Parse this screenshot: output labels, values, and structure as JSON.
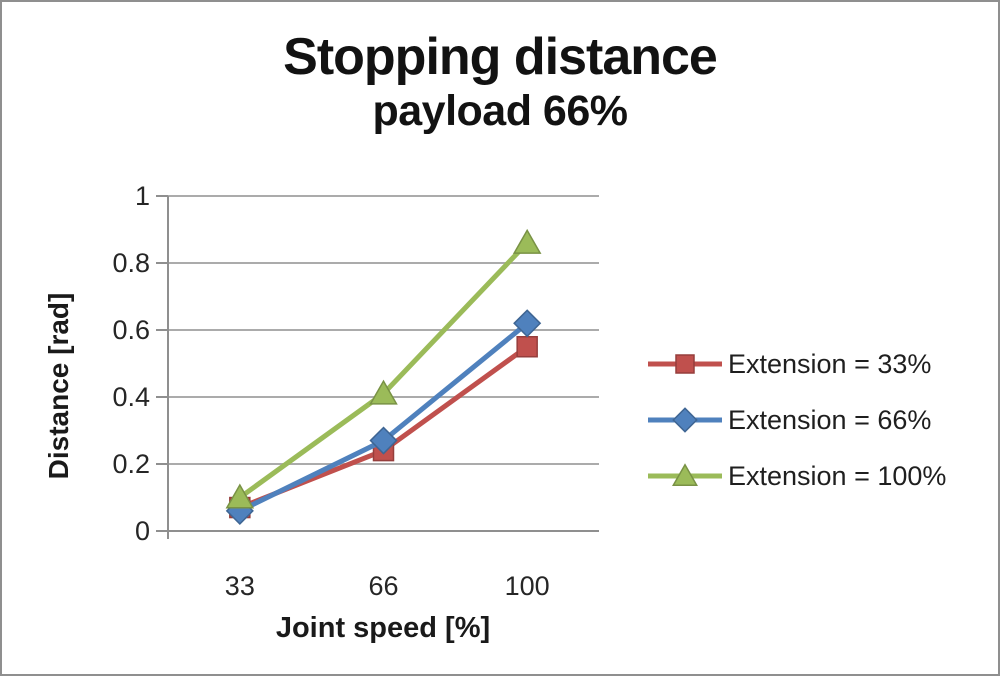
{
  "window": {
    "background": "#ffffff",
    "border_color": "#8f8f8f"
  },
  "chart_data": {
    "type": "line",
    "title": "Stopping distance",
    "subtitle": "payload 66%",
    "xlabel": "Joint speed [%]",
    "ylabel": "Distance [rad]",
    "categories": [
      "33",
      "66",
      "100"
    ],
    "y_ticks": [
      "0",
      "0.2",
      "0.4",
      "0.6",
      "0.8",
      "1"
    ],
    "ylim": [
      0,
      1
    ],
    "grid": "horizontal",
    "legend_position": "right",
    "series": [
      {
        "name": "Extension = 33%",
        "marker": "square",
        "color": "#C0504D",
        "values": [
          0.07,
          0.24,
          0.55
        ]
      },
      {
        "name": "Extension = 66%",
        "marker": "diamond",
        "color": "#4F81BD",
        "values": [
          0.06,
          0.27,
          0.62
        ]
      },
      {
        "name": "Extension = 100%",
        "marker": "triangle",
        "color": "#9BBB59",
        "values": [
          0.1,
          0.41,
          0.86
        ]
      }
    ],
    "gridline_color": "#ABABAB",
    "axis_color": "#8F8F8F",
    "tick_text_color": "#262626"
  }
}
